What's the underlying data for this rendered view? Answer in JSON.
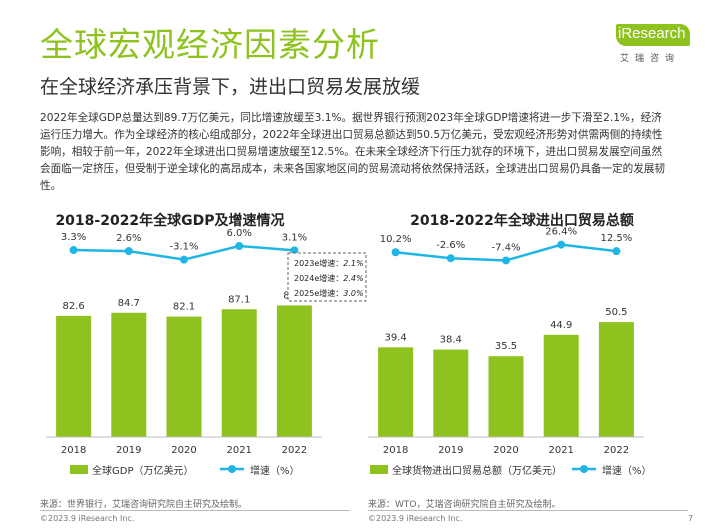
{
  "header": {
    "title": "全球宏观经济因素分析",
    "subtitle": "在全球经济承压背景下，进出口贸易发展放缓"
  },
  "logo": {
    "brand_text": "iResearch",
    "sub_text": "艾瑞咨询",
    "color": "#8dc21f"
  },
  "paragraph": "2022年全球GDP总量达到89.7万亿美元，同比增速放缓至3.1%。据世界银行预测2023年全球GDP增速将进一步下滑至2.1%，经济运行压力增大。作为全球经济的核心组成部分，2022年全球进出口贸易总额达到50.5万亿美元，受宏观经济形势对供需两侧的持续性影响，相较于前一年，2022年全球进出口贸易增速放缓至12.5%。在未来全球经济下行压力犹存的环境下，进出口贸易发展空间虽然会面临一定挤压，但受制于逆全球化的高昂成本，未来各国家地区间的贸易流动将依然保持活跃，全球进出口贸易仍具备一定的发展韧性。",
  "chart_data": [
    {
      "type": "bar",
      "title": "2018-2022年全球GDP及增速情况",
      "categories": [
        "2018",
        "2019",
        "2020",
        "2021",
        "2022"
      ],
      "series": [
        {
          "name": "全球GDP（万亿美元）",
          "type": "bar",
          "values": [
            82.6,
            84.7,
            82.1,
            87.1,
            89.7
          ],
          "labels": [
            "82.6",
            "84.7",
            "82.1",
            "87.1",
            "89.7"
          ],
          "color": "#8dc21f"
        },
        {
          "name": "增速（%）",
          "type": "line",
          "values": [
            3.3,
            2.6,
            -3.1,
            6.0,
            3.1
          ],
          "labels": [
            "3.3%",
            "2.6%",
            "-3.1%",
            "6.0%",
            "3.1%"
          ],
          "color": "#1fb6e6"
        }
      ],
      "annotation_box": [
        {
          "label": "2023e增速：",
          "value": "2.1%"
        },
        {
          "label": "2024e增速：",
          "value": "2.4%"
        },
        {
          "label": "2025e增速：",
          "value": "3.0%"
        }
      ],
      "legend_position": "bottom",
      "grid": false
    },
    {
      "type": "bar",
      "title": "2018-2022年全球进出口贸易总额",
      "categories": [
        "2018",
        "2019",
        "2020",
        "2021",
        "2022"
      ],
      "series": [
        {
          "name": "全球货物进出口贸易总额（万亿美元）",
          "type": "bar",
          "values": [
            39.4,
            38.4,
            35.5,
            44.9,
            50.5
          ],
          "labels": [
            "39.4",
            "38.4",
            "35.5",
            "44.9",
            "50.5"
          ],
          "color": "#8dc21f"
        },
        {
          "name": "增速（%）",
          "type": "line",
          "values": [
            10.2,
            -2.6,
            -7.4,
            26.4,
            12.5
          ],
          "labels": [
            "10.2%",
            "-2.6%",
            "-7.4%",
            "26.4%",
            "12.5%"
          ],
          "color": "#1fb6e6"
        }
      ],
      "legend_position": "bottom",
      "grid": false
    }
  ],
  "footer": {
    "source_left": "来源：世界银行，艾瑞咨询研究院自主研究及绘制。",
    "source_right": "来源：WTO，艾瑞咨询研究院自主研究及绘制。",
    "copyright_left": "©2023.9 iResearch Inc.",
    "copyright_right": "©2023.9 iResearch Inc.",
    "page_number": "7"
  }
}
